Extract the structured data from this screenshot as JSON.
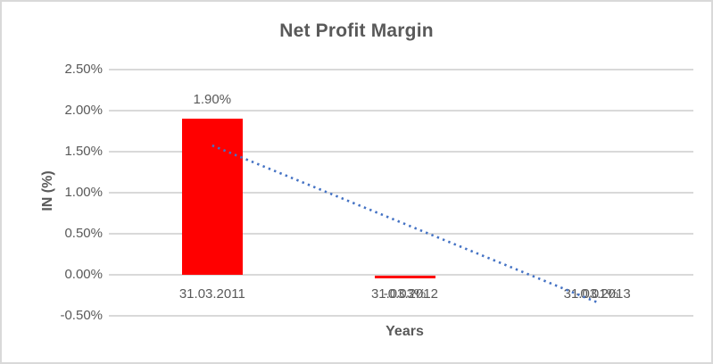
{
  "chart_data": {
    "type": "bar",
    "title": "Net Profit Margin",
    "xlabel": "Years",
    "ylabel": "IN (%)",
    "categories": [
      "31.03.2011",
      "31.03.2012",
      "31.03.2013"
    ],
    "values": [
      1.9,
      -0.03,
      -0.01
    ],
    "data_labels": [
      "1.90%",
      "-0.03%",
      "-0.01%"
    ],
    "ytick_labels": [
      "2.50%",
      "2.00%",
      "1.50%",
      "1.00%",
      "0.50%",
      "0.00%",
      "-0.50%"
    ],
    "ylim": [
      -0.5,
      2.5
    ],
    "ytick_step": 0.5,
    "grid": true,
    "legend": false,
    "bar_color": "#ff0000",
    "gridline_color": "#d9d9d9",
    "text_color": "#595959",
    "trendline": {
      "type": "linear",
      "style": "dotted",
      "color": "#4472c4",
      "start_value": 1.575,
      "end_value": -0.335
    }
  }
}
